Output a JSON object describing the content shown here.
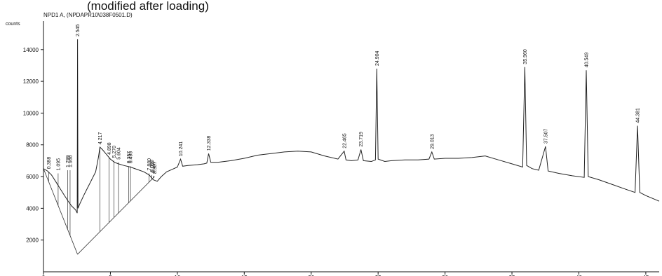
{
  "header": {
    "title": "(modified after loading)",
    "detector": "NPD1 A, (NPDAPR10\\038F0501.D)"
  },
  "chart_data": {
    "type": "line",
    "title": "(modified after loading)",
    "ylabel": "counts",
    "xlabel": "",
    "xlim": [
      0,
      46
    ],
    "ylim": [
      0,
      15800
    ],
    "y_ticks": [
      2000,
      4000,
      6000,
      8000,
      10000,
      12000,
      14000
    ],
    "x_ticks": [
      0,
      5,
      10,
      15,
      20,
      25,
      30,
      35,
      40,
      45
    ],
    "x_tick_labels": [
      "0",
      "5",
      "10",
      "15",
      "20",
      "25",
      "30",
      "35",
      "40",
      "45"
    ],
    "grid": false,
    "line_color": "#222222",
    "series": [
      {
        "values_xy": [
          [
            0.0,
            6500
          ],
          [
            0.3,
            6350
          ],
          [
            0.6,
            6100
          ],
          [
            0.9,
            5700
          ],
          [
            1.2,
            5300
          ],
          [
            1.5,
            4900
          ],
          [
            1.8,
            4500
          ],
          [
            2.1,
            4150
          ],
          [
            2.4,
            3900
          ],
          [
            2.52,
            3700
          ],
          [
            2.545,
            14650
          ],
          [
            2.58,
            4000
          ],
          [
            2.7,
            4250
          ],
          [
            3.0,
            4800
          ],
          [
            3.3,
            5300
          ],
          [
            3.6,
            5800
          ],
          [
            3.9,
            6300
          ],
          [
            4.1,
            7200
          ],
          [
            4.217,
            7850
          ],
          [
            4.4,
            7700
          ],
          [
            4.7,
            7400
          ],
          [
            5.0,
            7100
          ],
          [
            5.3,
            6900
          ],
          [
            5.6,
            6800
          ],
          [
            6.0,
            6700
          ],
          [
            6.5,
            6600
          ],
          [
            7.0,
            6450
          ],
          [
            7.5,
            6300
          ],
          [
            7.9,
            6100
          ],
          [
            8.2,
            5800
          ],
          [
            8.5,
            5700
          ],
          [
            8.8,
            6000
          ],
          [
            9.2,
            6300
          ],
          [
            9.6,
            6450
          ],
          [
            10.0,
            6600
          ],
          [
            10.241,
            7100
          ],
          [
            10.4,
            6650
          ],
          [
            10.8,
            6700
          ],
          [
            11.5,
            6750
          ],
          [
            12.0,
            6800
          ],
          [
            12.2,
            6850
          ],
          [
            12.338,
            7450
          ],
          [
            12.5,
            6900
          ],
          [
            13.0,
            6900
          ],
          [
            14.0,
            7000
          ],
          [
            15.0,
            7150
          ],
          [
            16.0,
            7350
          ],
          [
            17.0,
            7450
          ],
          [
            18.0,
            7550
          ],
          [
            19.0,
            7600
          ],
          [
            20.0,
            7550
          ],
          [
            21.0,
            7300
          ],
          [
            22.0,
            7100
          ],
          [
            22.465,
            7600
          ],
          [
            22.6,
            7050
          ],
          [
            23.0,
            7000
          ],
          [
            23.5,
            7050
          ],
          [
            23.719,
            7700
          ],
          [
            23.9,
            7000
          ],
          [
            24.5,
            6950
          ],
          [
            24.8,
            7050
          ],
          [
            24.904,
            12800
          ],
          [
            25.0,
            7100
          ],
          [
            25.5,
            6950
          ],
          [
            26.0,
            7000
          ],
          [
            27.0,
            7050
          ],
          [
            28.0,
            7050
          ],
          [
            28.8,
            7100
          ],
          [
            29.013,
            7550
          ],
          [
            29.2,
            7100
          ],
          [
            30.0,
            7150
          ],
          [
            31.0,
            7150
          ],
          [
            32.0,
            7200
          ],
          [
            33.0,
            7300
          ],
          [
            34.0,
            7050
          ],
          [
            35.0,
            6800
          ],
          [
            35.8,
            6600
          ],
          [
            35.96,
            12900
          ],
          [
            36.1,
            6700
          ],
          [
            36.5,
            6500
          ],
          [
            37.0,
            6400
          ],
          [
            37.507,
            7900
          ],
          [
            37.7,
            6350
          ],
          [
            38.5,
            6200
          ],
          [
            39.5,
            6050
          ],
          [
            40.4,
            5950
          ],
          [
            40.549,
            12700
          ],
          [
            40.7,
            6000
          ],
          [
            41.5,
            5800
          ],
          [
            42.5,
            5500
          ],
          [
            43.5,
            5200
          ],
          [
            44.2,
            5000
          ],
          [
            44.381,
            9200
          ],
          [
            44.55,
            5000
          ],
          [
            45.0,
            4800
          ],
          [
            46.0,
            4450
          ]
        ]
      }
    ],
    "peaks": [
      {
        "label": "0.388",
        "x": 0.388,
        "y": 6300
      },
      {
        "label": "1.095",
        "x": 1.095,
        "y": 6200
      },
      {
        "label": "1.799",
        "x": 1.799,
        "y": 6400
      },
      {
        "label": "1.988",
        "x": 1.988,
        "y": 6400
      },
      {
        "label": "2.545",
        "x": 2.545,
        "y": 14650
      },
      {
        "label": "4.217",
        "x": 4.217,
        "y": 7850
      },
      {
        "label": "4.898",
        "x": 4.898,
        "y": 7200
      },
      {
        "label": "5.270",
        "x": 5.27,
        "y": 7000
      },
      {
        "label": "5.604",
        "x": 5.604,
        "y": 6900
      },
      {
        "label": "6.357",
        "x": 6.357,
        "y": 6650
      },
      {
        "label": "6.499",
        "x": 6.499,
        "y": 6650
      },
      {
        "label": "7.880",
        "x": 7.88,
        "y": 6200
      },
      {
        "label": "8.090",
        "x": 8.09,
        "y": 6100
      },
      {
        "label": "8.197",
        "x": 8.197,
        "y": 6050
      },
      {
        "label": "8.307",
        "x": 8.307,
        "y": 6000
      },
      {
        "label": "10.241",
        "x": 10.241,
        "y": 7100
      },
      {
        "label": "12.338",
        "x": 12.338,
        "y": 7450
      },
      {
        "label": "22.465",
        "x": 22.465,
        "y": 7600
      },
      {
        "label": "23.719",
        "x": 23.719,
        "y": 7700
      },
      {
        "label": "24.904",
        "x": 24.904,
        "y": 12800
      },
      {
        "label": "29.013",
        "x": 29.013,
        "y": 7550
      },
      {
        "label": "35.960",
        "x": 35.96,
        "y": 12900
      },
      {
        "label": "37.507",
        "x": 37.507,
        "y": 7900
      },
      {
        "label": "40.549",
        "x": 40.549,
        "y": 12700
      },
      {
        "label": "44.381",
        "x": 44.381,
        "y": 9200
      }
    ],
    "baseline_vertex": {
      "x": 2.545,
      "y": 1100
    }
  }
}
